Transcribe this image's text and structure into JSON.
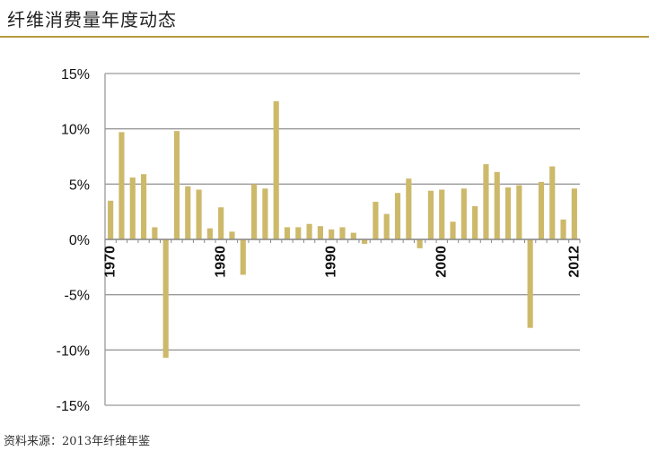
{
  "header": {
    "title": "纤维消费量年度动态",
    "rule_color": "#b59a3e"
  },
  "source": "资料来源：2013年纤维年鉴",
  "chart_data": {
    "type": "bar",
    "title": "",
    "xlabel": "",
    "ylabel": "",
    "ylim": [
      -15,
      15
    ],
    "yticks": [
      15,
      10,
      5,
      0,
      -5,
      -10,
      -15
    ],
    "ytick_labels": [
      "15%",
      "10%",
      "5%",
      "0%",
      "-5%",
      "-10%",
      "-15%"
    ],
    "x_tick_labels": [
      "1970",
      "1980",
      "1990",
      "2000",
      "2012"
    ],
    "grid": true,
    "bar_color": "#cdb96a",
    "categories": [
      1970,
      1971,
      1972,
      1973,
      1974,
      1975,
      1976,
      1977,
      1978,
      1979,
      1980,
      1981,
      1982,
      1983,
      1984,
      1985,
      1986,
      1987,
      1988,
      1989,
      1990,
      1991,
      1992,
      1993,
      1994,
      1995,
      1996,
      1997,
      1998,
      1999,
      2000,
      2001,
      2002,
      2003,
      2004,
      2005,
      2006,
      2007,
      2008,
      2009,
      2010,
      2011,
      2012
    ],
    "values": [
      3.5,
      9.7,
      5.6,
      5.9,
      1.1,
      -10.7,
      9.8,
      4.8,
      4.5,
      1.0,
      2.9,
      0.7,
      -3.2,
      5.0,
      4.6,
      12.5,
      1.1,
      1.1,
      1.4,
      1.2,
      0.9,
      1.1,
      0.6,
      -0.4,
      3.4,
      2.3,
      4.2,
      5.5,
      -0.8,
      4.4,
      4.5,
      1.6,
      4.6,
      3.0,
      6.8,
      6.1,
      4.7,
      4.9,
      -8.0,
      5.2,
      6.6,
      1.8,
      4.6
    ]
  }
}
